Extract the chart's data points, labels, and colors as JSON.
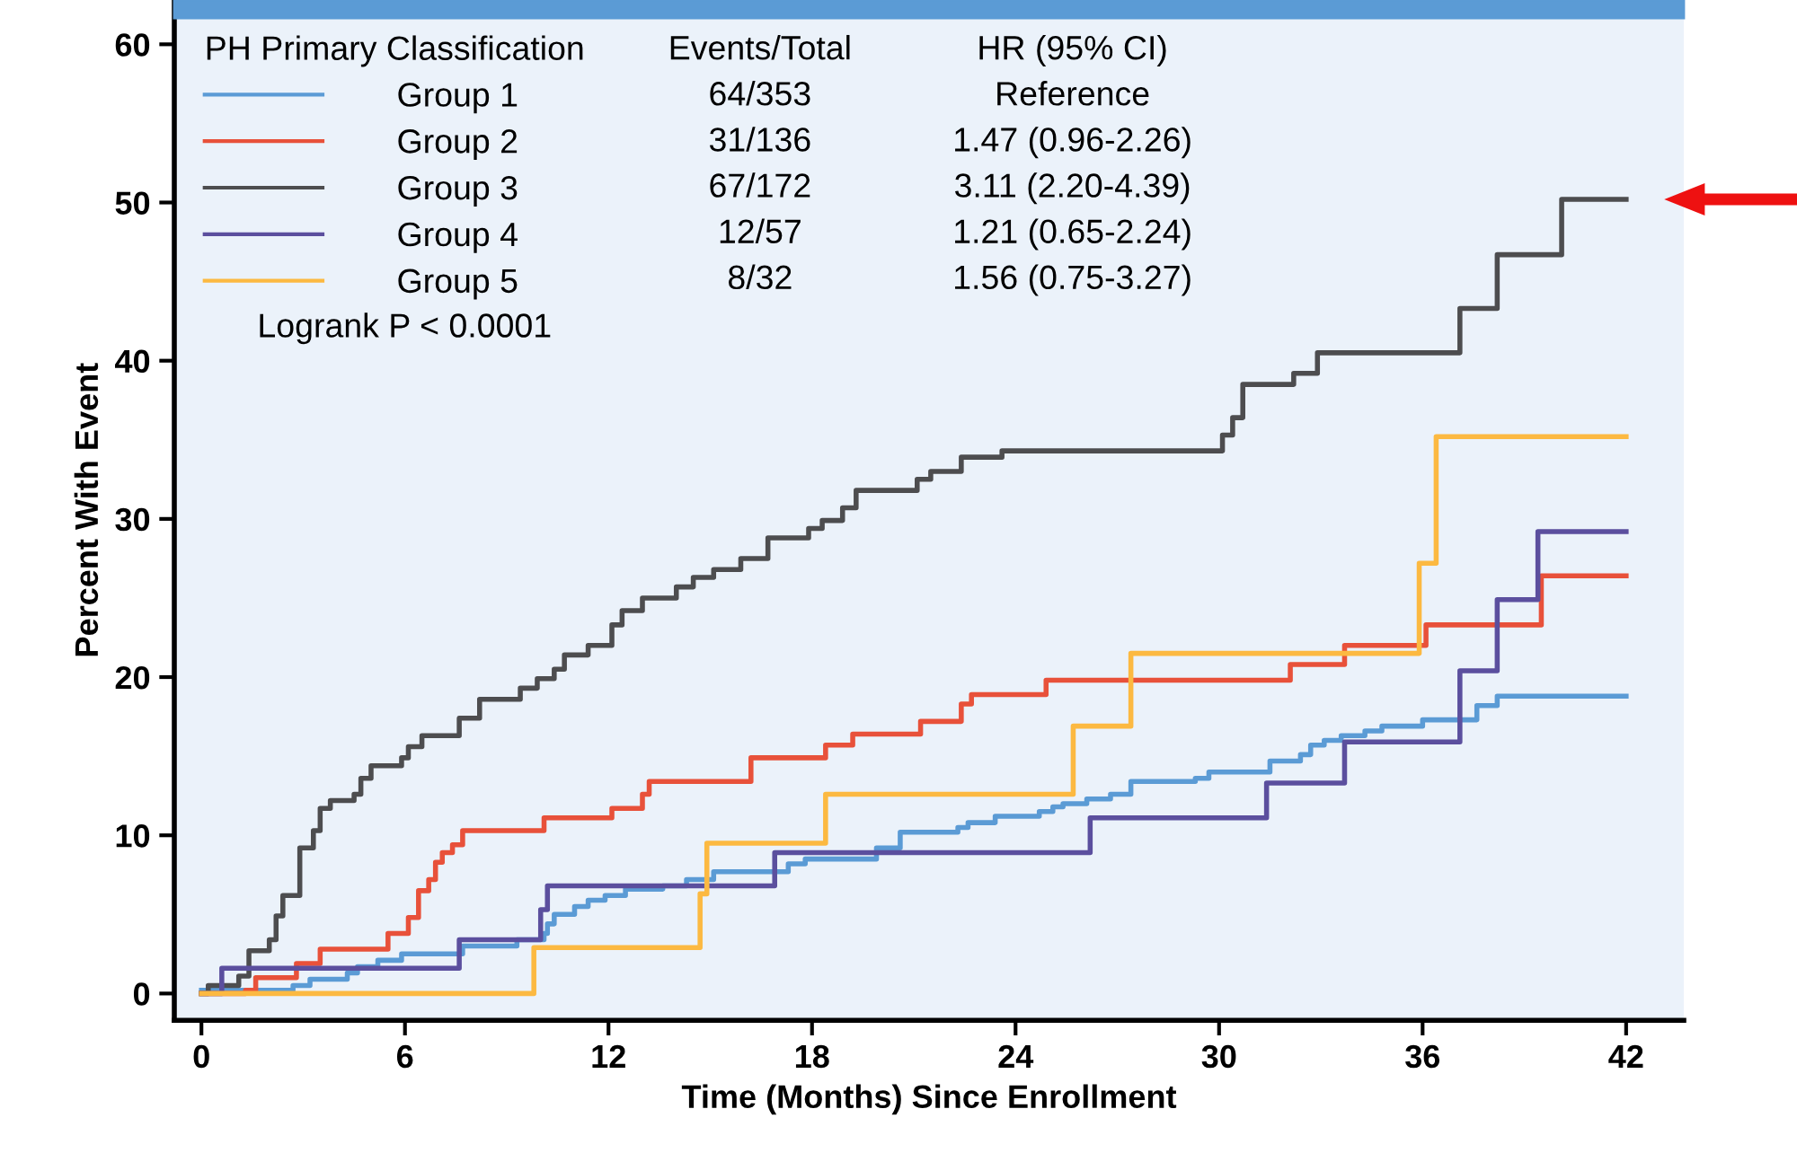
{
  "chart_data": {
    "type": "step",
    "xlabel": "Time (Months) Since Enrollment",
    "ylabel": "Percent With Event",
    "legend_title": "PH Primary Classification",
    "xlim": [
      -0.8,
      43.7
    ],
    "ylim": [
      -1.7,
      62.8
    ],
    "xticks": [
      0,
      6,
      12,
      18,
      24,
      30,
      36,
      42
    ],
    "yticks": [
      0,
      10,
      20,
      30,
      40,
      50,
      60
    ],
    "grid": false,
    "legend": "top left",
    "series": [
      {
        "name": "Group 1",
        "color": "#5b9bd5",
        "x": [
          0,
          2.7,
          3.2,
          4.3,
          4.6,
          5.2,
          5.9,
          7.7,
          9.3,
          10.1,
          10.2,
          10.4,
          11.0,
          11.4,
          11.9,
          12.5,
          13.6,
          14.3,
          15.1,
          17.3,
          17.8,
          19.9,
          20.6,
          22.3,
          22.6,
          23.4,
          24.7,
          25.1,
          25.4,
          26.1,
          26.8,
          27.4,
          29.3,
          29.7,
          31.5,
          32.4,
          32.7,
          33.1,
          33.6,
          34.3,
          34.8,
          36.0,
          37.6,
          38.2,
          42
        ],
        "values": [
          0.2,
          0.5,
          0.9,
          1.3,
          1.7,
          2.1,
          2.5,
          3.0,
          3.4,
          3.8,
          4.4,
          5.0,
          5.5,
          5.9,
          6.2,
          6.6,
          6.8,
          7.2,
          7.7,
          8.2,
          8.5,
          9.2,
          10.2,
          10.5,
          10.8,
          11.2,
          11.5,
          11.8,
          12.0,
          12.3,
          12.6,
          13.4,
          13.6,
          14.0,
          14.7,
          15.1,
          15.7,
          16.0,
          16.3,
          16.6,
          16.9,
          17.3,
          18.2,
          18.8,
          18.8
        ]
      },
      {
        "name": "Group 2",
        "color": "#e8513a",
        "x": [
          0,
          1.3,
          1.6,
          2.8,
          3.5,
          5.5,
          6.1,
          6.4,
          6.7,
          6.9,
          7.1,
          7.4,
          7.7,
          10.1,
          12.1,
          13.0,
          13.2,
          16.2,
          18.4,
          19.2,
          21.2,
          22.4,
          22.7,
          24.9,
          32.1,
          33.7,
          36.1,
          39.5,
          42
        ],
        "values": [
          0,
          0.2,
          1.0,
          1.9,
          2.8,
          3.8,
          4.8,
          6.5,
          7.2,
          8.3,
          8.9,
          9.4,
          10.3,
          11.1,
          11.7,
          12.6,
          13.4,
          14.9,
          15.7,
          16.4,
          17.2,
          18.3,
          18.9,
          19.8,
          20.8,
          22.0,
          23.3,
          26.4,
          26.4
        ]
      },
      {
        "name": "Group 3",
        "color": "#4d4d4f",
        "x": [
          0,
          0.2,
          1.1,
          1.4,
          2.0,
          2.2,
          2.4,
          2.9,
          3.3,
          3.5,
          3.8,
          4.5,
          4.7,
          5.0,
          5.9,
          6.1,
          6.5,
          7.6,
          8.2,
          9.4,
          9.9,
          10.4,
          10.7,
          11.4,
          12.1,
          12.4,
          13.0,
          14.0,
          14.5,
          15.1,
          15.9,
          16.7,
          17.9,
          18.3,
          18.9,
          19.3,
          21.1,
          21.5,
          22.4,
          23.6,
          30.1,
          30.4,
          30.7,
          32.2,
          32.9,
          37.1,
          38.2,
          40.1,
          42
        ],
        "values": [
          0,
          0.5,
          1.1,
          2.7,
          3.4,
          4.9,
          6.2,
          9.2,
          10.3,
          11.7,
          12.2,
          12.6,
          13.6,
          14.4,
          14.9,
          15.6,
          16.3,
          17.4,
          18.6,
          19.3,
          19.9,
          20.5,
          21.4,
          22.0,
          23.3,
          24.2,
          25.0,
          25.7,
          26.3,
          26.8,
          27.5,
          28.8,
          29.4,
          29.9,
          30.7,
          31.8,
          32.5,
          33.0,
          33.9,
          34.3,
          35.3,
          36.4,
          38.5,
          39.2,
          40.5,
          43.3,
          46.7,
          50.2,
          50.2
        ]
      },
      {
        "name": "Group 4",
        "color": "#5b4f9e",
        "x": [
          0,
          0.6,
          7.6,
          10.0,
          10.2,
          16.9,
          26.2,
          31.4,
          33.7,
          37.1,
          38.2,
          39.4,
          42
        ],
        "values": [
          0,
          1.6,
          3.4,
          5.3,
          6.8,
          8.9,
          11.1,
          13.3,
          15.9,
          20.4,
          24.9,
          29.2,
          29.2
        ]
      },
      {
        "name": "Group 5",
        "color": "#fcb941",
        "x": [
          0,
          9.8,
          14.7,
          14.9,
          18.4,
          25.7,
          27.4,
          35.9,
          36.4,
          42
        ],
        "values": [
          0,
          2.9,
          6.3,
          9.5,
          12.6,
          16.9,
          21.5,
          27.2,
          35.2,
          35.2
        ]
      }
    ],
    "annotations": [
      "Events/Total",
      "HR (95% CI)",
      "64/353",
      "Reference",
      "31/136",
      "1.47 (0.96-2.26)",
      "67/172",
      "3.11 (2.20-4.39)",
      "12/57",
      "1.21 (0.65-2.24)",
      "8/32",
      "1.56 (0.75-3.27)",
      "Logrank P < 0.0001"
    ]
  }
}
